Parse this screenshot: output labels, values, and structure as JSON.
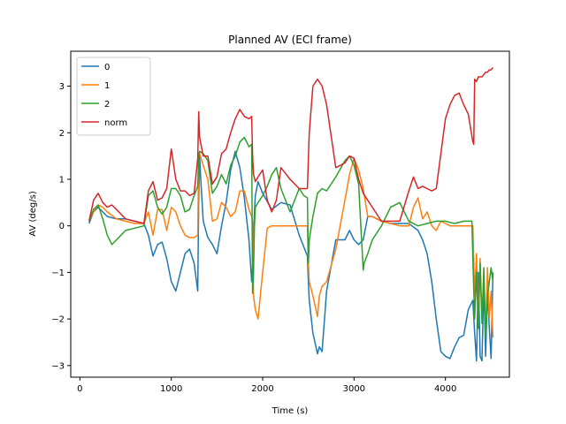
{
  "chart_data": {
    "type": "line",
    "title": "Planned AV (ECI frame)",
    "xlabel": "Time (s)",
    "ylabel": "AV (deg/s)",
    "xlim": [
      -100,
      4700
    ],
    "ylim": [
      -3.25,
      3.75
    ],
    "xticks": [
      0,
      1000,
      2000,
      3000,
      4000
    ],
    "yticks": [
      -3,
      -2,
      -1,
      0,
      1,
      2,
      3
    ],
    "legend_position": "upper-left",
    "grid": false,
    "series": [
      {
        "name": "0",
        "color": "#1f77b4",
        "x": [
          100,
          150,
          200,
          250,
          300,
          400,
          500,
          600,
          700,
          750,
          800,
          850,
          900,
          950,
          1000,
          1050,
          1100,
          1150,
          1200,
          1250,
          1290,
          1300,
          1310,
          1320,
          1350,
          1400,
          1450,
          1500,
          1550,
          1600,
          1650,
          1700,
          1750,
          1800,
          1850,
          1880,
          1890,
          1900,
          1910,
          1920,
          1950,
          2000,
          2100,
          2200,
          2300,
          2400,
          2490,
          2500,
          2510,
          2550,
          2600,
          2620,
          2650,
          2700,
          2800,
          2900,
          2950,
          3000,
          3050,
          3100,
          3150,
          3200,
          3300,
          3400,
          3500,
          3600,
          3700,
          3750,
          3800,
          3850,
          3900,
          3950,
          4000,
          4050,
          4100,
          4150,
          4200,
          4250,
          4300,
          4320,
          4340,
          4360,
          4380,
          4400,
          4420,
          4440,
          4460,
          4480,
          4500,
          4520
        ],
        "y": [
          0.05,
          0.3,
          0.4,
          0.3,
          0.2,
          0.15,
          0.15,
          0.1,
          0.05,
          -0.2,
          -0.65,
          -0.4,
          -0.35,
          -0.7,
          -1.2,
          -1.4,
          -1.0,
          -0.6,
          -0.5,
          -0.8,
          -1.4,
          0.6,
          1.5,
          1.1,
          0.1,
          -0.25,
          -0.4,
          -0.6,
          0.0,
          0.5,
          1.2,
          1.6,
          1.25,
          0.6,
          -0.3,
          -1.2,
          -0.9,
          -0.3,
          0.3,
          0.65,
          0.95,
          0.7,
          0.35,
          0.5,
          0.45,
          -0.2,
          -0.65,
          -1.2,
          -1.6,
          -2.3,
          -2.75,
          -2.6,
          -2.7,
          -1.4,
          -0.3,
          -0.3,
          -0.1,
          -0.3,
          -0.4,
          -0.3,
          0.2,
          0.2,
          0.1,
          0.05,
          0.05,
          0.05,
          -0.1,
          -0.3,
          -0.6,
          -1.2,
          -2.0,
          -2.7,
          -2.8,
          -2.85,
          -2.6,
          -2.4,
          -2.35,
          -1.8,
          -1.6,
          -2.3,
          -2.9,
          -1.0,
          -2.8,
          -2.9,
          -1.2,
          -2.8,
          -1.4,
          -2.2,
          -2.85,
          -1.0
        ]
      },
      {
        "name": "1",
        "color": "#ff7f0e",
        "x": [
          100,
          150,
          200,
          250,
          300,
          400,
          500,
          600,
          700,
          750,
          800,
          850,
          900,
          950,
          1000,
          1050,
          1100,
          1150,
          1200,
          1250,
          1290,
          1300,
          1310,
          1350,
          1400,
          1450,
          1500,
          1550,
          1600,
          1650,
          1700,
          1750,
          1800,
          1850,
          1880,
          1890,
          1900,
          1920,
          1950,
          2000,
          2050,
          2100,
          2150,
          2200,
          2300,
          2400,
          2490,
          2500,
          2510,
          2550,
          2600,
          2620,
          2650,
          2700,
          2800,
          2900,
          2950,
          3000,
          3050,
          3100,
          3150,
          3200,
          3300,
          3400,
          3500,
          3600,
          3650,
          3700,
          3750,
          3800,
          3850,
          3900,
          3950,
          4000,
          4050,
          4100,
          4150,
          4200,
          4250,
          4300,
          4320,
          4340,
          4360,
          4380,
          4400,
          4420,
          4440,
          4460,
          4480,
          4500,
          4520
        ],
        "y": [
          0.1,
          0.3,
          0.45,
          0.4,
          0.3,
          0.15,
          0.1,
          0.05,
          0.05,
          0.3,
          -0.2,
          0.35,
          0.35,
          -0.1,
          0.4,
          0.3,
          0.0,
          -0.2,
          -0.25,
          -0.25,
          -0.2,
          1.5,
          1.55,
          1.3,
          1.0,
          0.1,
          0.15,
          0.5,
          0.4,
          0.2,
          0.3,
          0.75,
          0.75,
          0.35,
          0.2,
          0.1,
          -1.5,
          -1.8,
          -2.0,
          -1.0,
          -0.05,
          0.0,
          0.0,
          0.0,
          0.0,
          0.0,
          0.0,
          -0.8,
          -1.2,
          -1.5,
          -1.95,
          -1.5,
          -1.3,
          -1.2,
          -0.5,
          0.55,
          1.1,
          1.45,
          1.2,
          0.8,
          0.2,
          0.2,
          0.1,
          0.05,
          0.0,
          0.0,
          0.4,
          0.6,
          0.15,
          0.3,
          0.0,
          -0.1,
          0.1,
          0.05,
          0.0,
          0.0,
          0.0,
          0.0,
          0.0,
          0.0,
          -1.5,
          -0.6,
          -2.1,
          -0.7,
          -2.0,
          -1.0,
          -2.3,
          -0.9,
          -2.0,
          -1.4,
          -2.4
        ]
      },
      {
        "name": "2",
        "color": "#2ca02c",
        "x": [
          100,
          150,
          200,
          250,
          300,
          350,
          400,
          500,
          600,
          700,
          750,
          800,
          850,
          900,
          950,
          1000,
          1050,
          1100,
          1150,
          1200,
          1250,
          1290,
          1300,
          1310,
          1350,
          1400,
          1450,
          1500,
          1550,
          1600,
          1650,
          1700,
          1750,
          1800,
          1850,
          1880,
          1890,
          1900,
          1910,
          1920,
          1950,
          2000,
          2050,
          2100,
          2150,
          2200,
          2300,
          2400,
          2450,
          2490,
          2500,
          2510,
          2550,
          2600,
          2650,
          2700,
          2800,
          2900,
          2950,
          3000,
          3050,
          3100,
          3110,
          3150,
          3200,
          3300,
          3400,
          3500,
          3600,
          3700,
          3800,
          3900,
          4000,
          4100,
          4200,
          4290,
          4300,
          4320,
          4340,
          4360,
          4380,
          4400,
          4420,
          4440,
          4460,
          4480,
          4500,
          4520
        ],
        "y": [
          0.1,
          0.35,
          0.45,
          0.15,
          -0.2,
          -0.4,
          -0.3,
          -0.1,
          -0.05,
          0.0,
          0.65,
          0.75,
          0.4,
          0.25,
          0.4,
          0.8,
          0.8,
          0.65,
          0.3,
          0.35,
          0.65,
          0.85,
          1.5,
          1.6,
          1.55,
          1.4,
          0.7,
          0.85,
          1.1,
          0.9,
          1.3,
          1.5,
          1.8,
          1.9,
          1.7,
          1.75,
          -1.45,
          -1.0,
          0.0,
          0.4,
          0.5,
          0.65,
          0.85,
          1.1,
          1.25,
          0.8,
          0.3,
          0.8,
          0.65,
          0.6,
          -0.8,
          -0.3,
          0.2,
          0.7,
          0.8,
          0.75,
          1.05,
          1.4,
          1.5,
          1.3,
          0.9,
          -0.95,
          -0.8,
          -0.6,
          -0.3,
          0.0,
          0.4,
          0.5,
          0.1,
          0.0,
          0.05,
          0.1,
          0.1,
          0.05,
          0.1,
          0.1,
          -0.7,
          -2.0,
          -1.0,
          -2.2,
          -0.8,
          -2.1,
          -0.9,
          -2.4,
          -1.5,
          -1.2,
          -0.9,
          -1.2
        ]
      },
      {
        "name": "norm",
        "color": "#d62728",
        "x": [
          100,
          150,
          200,
          250,
          300,
          350,
          400,
          500,
          600,
          700,
          750,
          800,
          850,
          900,
          950,
          1000,
          1050,
          1100,
          1150,
          1200,
          1250,
          1290,
          1300,
          1310,
          1350,
          1400,
          1450,
          1500,
          1550,
          1600,
          1650,
          1700,
          1750,
          1800,
          1850,
          1880,
          1890,
          1900,
          1920,
          1950,
          2000,
          2050,
          2100,
          2150,
          2200,
          2300,
          2400,
          2490,
          2500,
          2510,
          2550,
          2600,
          2650,
          2700,
          2800,
          2900,
          2950,
          3000,
          3050,
          3100,
          3150,
          3200,
          3300,
          3400,
          3500,
          3600,
          3650,
          3700,
          3750,
          3800,
          3850,
          3900,
          4000,
          4050,
          4100,
          4150,
          4200,
          4250,
          4300,
          4310,
          4320,
          4340,
          4360,
          4380,
          4400,
          4420,
          4440,
          4460,
          4480,
          4500,
          4520
        ],
        "y": [
          0.1,
          0.55,
          0.7,
          0.5,
          0.4,
          0.45,
          0.35,
          0.15,
          0.1,
          0.05,
          0.75,
          0.95,
          0.55,
          0.6,
          0.8,
          1.65,
          1.0,
          0.75,
          0.75,
          0.65,
          0.7,
          1.45,
          2.45,
          1.9,
          1.5,
          1.5,
          0.9,
          1.05,
          1.55,
          1.65,
          2.0,
          2.3,
          2.5,
          2.35,
          2.3,
          2.35,
          1.5,
          1.1,
          0.95,
          1.05,
          1.2,
          0.55,
          0.3,
          0.55,
          1.25,
          1.0,
          0.8,
          0.8,
          1.45,
          2.0,
          3.0,
          3.15,
          3.0,
          2.6,
          1.25,
          1.35,
          1.5,
          1.45,
          1.0,
          0.7,
          0.55,
          0.4,
          0.1,
          0.1,
          0.1,
          0.75,
          1.05,
          0.8,
          0.85,
          0.8,
          0.75,
          0.8,
          2.3,
          2.6,
          2.8,
          2.85,
          2.6,
          2.4,
          1.8,
          1.75,
          3.15,
          3.1,
          3.2,
          3.2,
          3.2,
          3.25,
          3.3,
          3.3,
          3.35,
          3.35,
          3.4
        ]
      }
    ]
  }
}
